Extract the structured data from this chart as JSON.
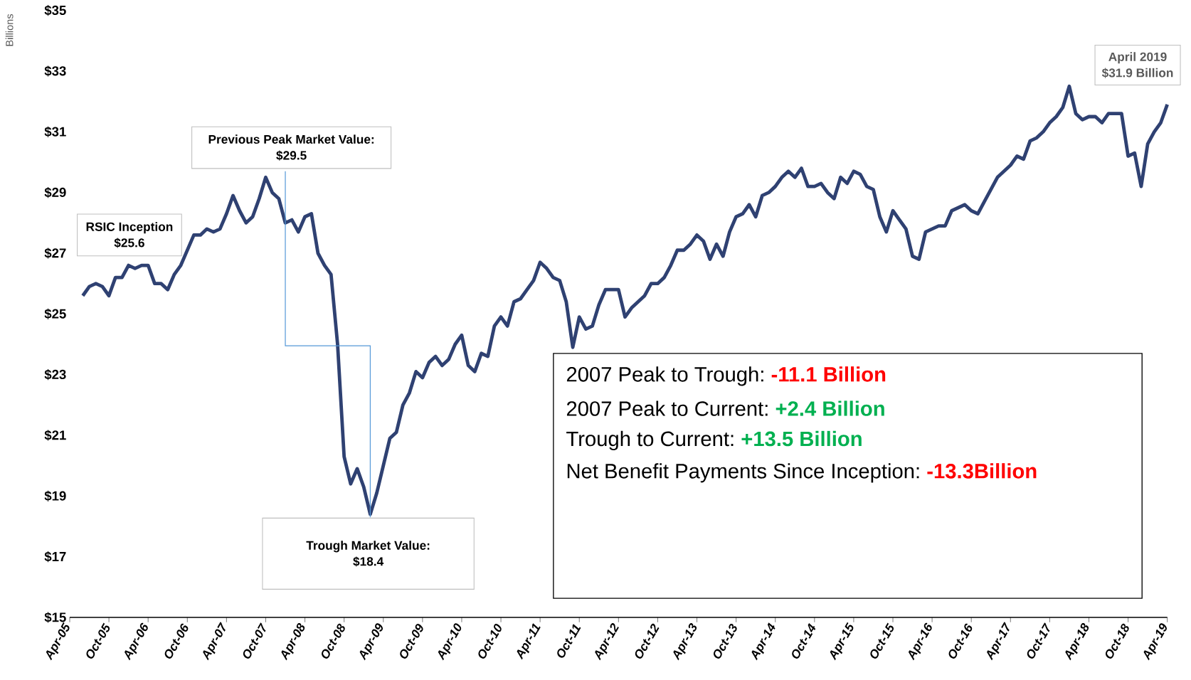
{
  "chart_data": {
    "type": "line",
    "ylabel": "Billions",
    "color": "#2f4172",
    "x": [
      "2005-06",
      "2005-07",
      "2005-08",
      "2005-09",
      "2005-10",
      "2005-11",
      "2005-12",
      "2006-01",
      "2006-02",
      "2006-03",
      "2006-04",
      "2006-05",
      "2006-06",
      "2006-07",
      "2006-08",
      "2006-09",
      "2006-10",
      "2006-11",
      "2006-12",
      "2007-01",
      "2007-02",
      "2007-03",
      "2007-04",
      "2007-05",
      "2007-06",
      "2007-07",
      "2007-08",
      "2007-09",
      "2007-10",
      "2007-11",
      "2007-12",
      "2008-01",
      "2008-02",
      "2008-03",
      "2008-04",
      "2008-05",
      "2008-06",
      "2008-07",
      "2008-08",
      "2008-09",
      "2008-10",
      "2008-11",
      "2008-12",
      "2009-01",
      "2009-02",
      "2009-03",
      "2009-04",
      "2009-05",
      "2009-06",
      "2009-07",
      "2009-08",
      "2009-09",
      "2009-10",
      "2009-11",
      "2009-12",
      "2010-01",
      "2010-02",
      "2010-03",
      "2010-04",
      "2010-05",
      "2010-06",
      "2010-07",
      "2010-08",
      "2010-09",
      "2010-10",
      "2010-11",
      "2010-12",
      "2011-01",
      "2011-02",
      "2011-03",
      "2011-04",
      "2011-05",
      "2011-06",
      "2011-07",
      "2011-08",
      "2011-09",
      "2011-10",
      "2011-11",
      "2011-12",
      "2012-01",
      "2012-02",
      "2012-03",
      "2012-04",
      "2012-05",
      "2012-06",
      "2012-07",
      "2012-08",
      "2012-09",
      "2012-10",
      "2012-11",
      "2012-12",
      "2013-01",
      "2013-02",
      "2013-03",
      "2013-04",
      "2013-05",
      "2013-06",
      "2013-07",
      "2013-08",
      "2013-09",
      "2013-10",
      "2013-11",
      "2013-12",
      "2014-01",
      "2014-02",
      "2014-03",
      "2014-04",
      "2014-05",
      "2014-06",
      "2014-07",
      "2014-08",
      "2014-09",
      "2014-10",
      "2014-11",
      "2014-12",
      "2015-01",
      "2015-02",
      "2015-03",
      "2015-04",
      "2015-05",
      "2015-06",
      "2015-07",
      "2015-08",
      "2015-09",
      "2015-10",
      "2015-11",
      "2015-12",
      "2016-01",
      "2016-02",
      "2016-03",
      "2016-04",
      "2016-05",
      "2016-06",
      "2016-07",
      "2016-08",
      "2016-09",
      "2016-10",
      "2016-11",
      "2016-12",
      "2017-01",
      "2017-02",
      "2017-03",
      "2017-04",
      "2017-05",
      "2017-06",
      "2017-07",
      "2017-08",
      "2017-09",
      "2017-10",
      "2017-11",
      "2017-12",
      "2018-01",
      "2018-02",
      "2018-03",
      "2018-04",
      "2018-05",
      "2018-06",
      "2018-07",
      "2018-08",
      "2018-09",
      "2018-10",
      "2018-11",
      "2018-12",
      "2019-01",
      "2019-02",
      "2019-03",
      "2019-04"
    ],
    "values": [
      25.6,
      25.9,
      26.0,
      25.9,
      25.6,
      26.2,
      26.2,
      26.6,
      26.5,
      26.6,
      26.6,
      26.0,
      26.0,
      25.8,
      26.3,
      26.6,
      27.1,
      27.6,
      27.6,
      27.8,
      27.7,
      27.8,
      28.3,
      28.9,
      28.4,
      28.0,
      28.2,
      28.8,
      29.5,
      29.0,
      28.8,
      28.0,
      28.1,
      27.7,
      28.2,
      28.3,
      27.0,
      26.6,
      26.3,
      24.0,
      20.3,
      19.4,
      19.9,
      19.3,
      18.4,
      19.1,
      20.0,
      20.9,
      21.1,
      22.0,
      22.4,
      23.1,
      22.9,
      23.4,
      23.6,
      23.3,
      23.5,
      24.0,
      24.3,
      23.3,
      23.1,
      23.7,
      23.6,
      24.6,
      24.9,
      24.6,
      25.4,
      25.5,
      25.8,
      26.1,
      26.7,
      26.5,
      26.2,
      26.1,
      25.4,
      23.9,
      24.9,
      24.5,
      24.6,
      25.3,
      25.8,
      25.8,
      25.8,
      24.9,
      25.2,
      25.4,
      25.6,
      26.0,
      26.0,
      26.2,
      26.6,
      27.1,
      27.1,
      27.3,
      27.6,
      27.4,
      26.8,
      27.3,
      26.9,
      27.7,
      28.2,
      28.3,
      28.6,
      28.2,
      28.9,
      29.0,
      29.2,
      29.5,
      29.7,
      29.5,
      29.8,
      29.2,
      29.2,
      29.3,
      29.0,
      28.8,
      29.5,
      29.3,
      29.7,
      29.6,
      29.2,
      29.1,
      28.2,
      27.7,
      28.4,
      28.1,
      27.8,
      26.9,
      26.8,
      27.7,
      27.8,
      27.9,
      27.9,
      28.4,
      28.5,
      28.6,
      28.4,
      28.3,
      28.7,
      29.1,
      29.5,
      29.7,
      29.9,
      30.2,
      30.1,
      30.7,
      30.8,
      31.0,
      31.3,
      31.5,
      31.8,
      32.5,
      31.6,
      31.4,
      31.5,
      31.5,
      31.3,
      31.6,
      31.6,
      31.6,
      30.2,
      30.3,
      29.2,
      30.6,
      31.0,
      31.3,
      31.9
    ],
    "xlim": [
      "2005-04",
      "2019-04"
    ],
    "xticks": [
      {
        "value": "2005-04",
        "label": "Apr-05"
      },
      {
        "value": "2005-10",
        "label": "Oct-05"
      },
      {
        "value": "2006-04",
        "label": "Apr-06"
      },
      {
        "value": "2006-10",
        "label": "Oct-06"
      },
      {
        "value": "2007-04",
        "label": "Apr-07"
      },
      {
        "value": "2007-10",
        "label": "Oct-07"
      },
      {
        "value": "2008-04",
        "label": "Apr-08"
      },
      {
        "value": "2008-10",
        "label": "Oct-08"
      },
      {
        "value": "2009-04",
        "label": "Apr-09"
      },
      {
        "value": "2009-10",
        "label": "Oct-09"
      },
      {
        "value": "2010-04",
        "label": "Apr-10"
      },
      {
        "value": "2010-10",
        "label": "Oct-10"
      },
      {
        "value": "2011-04",
        "label": "Apr-11"
      },
      {
        "value": "2011-10",
        "label": "Oct-11"
      },
      {
        "value": "2012-04",
        "label": "Apr-12"
      },
      {
        "value": "2012-10",
        "label": "Oct-12"
      },
      {
        "value": "2013-04",
        "label": "Apr-13"
      },
      {
        "value": "2013-10",
        "label": "Oct-13"
      },
      {
        "value": "2014-04",
        "label": "Apr-14"
      },
      {
        "value": "2014-10",
        "label": "Oct-14"
      },
      {
        "value": "2015-04",
        "label": "Apr-15"
      },
      {
        "value": "2015-10",
        "label": "Oct-15"
      },
      {
        "value": "2016-04",
        "label": "Apr-16"
      },
      {
        "value": "2016-10",
        "label": "Oct-16"
      },
      {
        "value": "2017-04",
        "label": "Apr-17"
      },
      {
        "value": "2017-10",
        "label": "Oct-17"
      },
      {
        "value": "2018-04",
        "label": "Apr-18"
      },
      {
        "value": "2018-10",
        "label": "Oct-18"
      },
      {
        "value": "2019-04",
        "label": "Apr-19"
      }
    ],
    "ylim": [
      15,
      35
    ],
    "yticks": [
      {
        "value": 15,
        "label": "$15"
      },
      {
        "value": 17,
        "label": "$17"
      },
      {
        "value": 19,
        "label": "$19"
      },
      {
        "value": 21,
        "label": "$21"
      },
      {
        "value": 23,
        "label": "$23"
      },
      {
        "value": 25,
        "label": "$25"
      },
      {
        "value": 27,
        "label": "$27"
      },
      {
        "value": 29,
        "label": "$29"
      },
      {
        "value": 31,
        "label": "$31"
      },
      {
        "value": 33,
        "label": "$33"
      },
      {
        "value": 35,
        "label": "$35"
      }
    ],
    "annotations": [
      "RSIC Inception",
      "$25.6",
      "Previous Peak Market Value:",
      "$29.5",
      "Trough Market Value:",
      "$18.4",
      "April 2019",
      "$31.9 Billion",
      "2007 Peak to Trough:",
      "-11.1 Billion",
      "2007 Peak to Current:",
      "+2.4 Billion",
      "Trough to Current:",
      "+13.5 Billion",
      "Net Benefit  Payments Since Inception:",
      "-13.3Billion"
    ]
  }
}
